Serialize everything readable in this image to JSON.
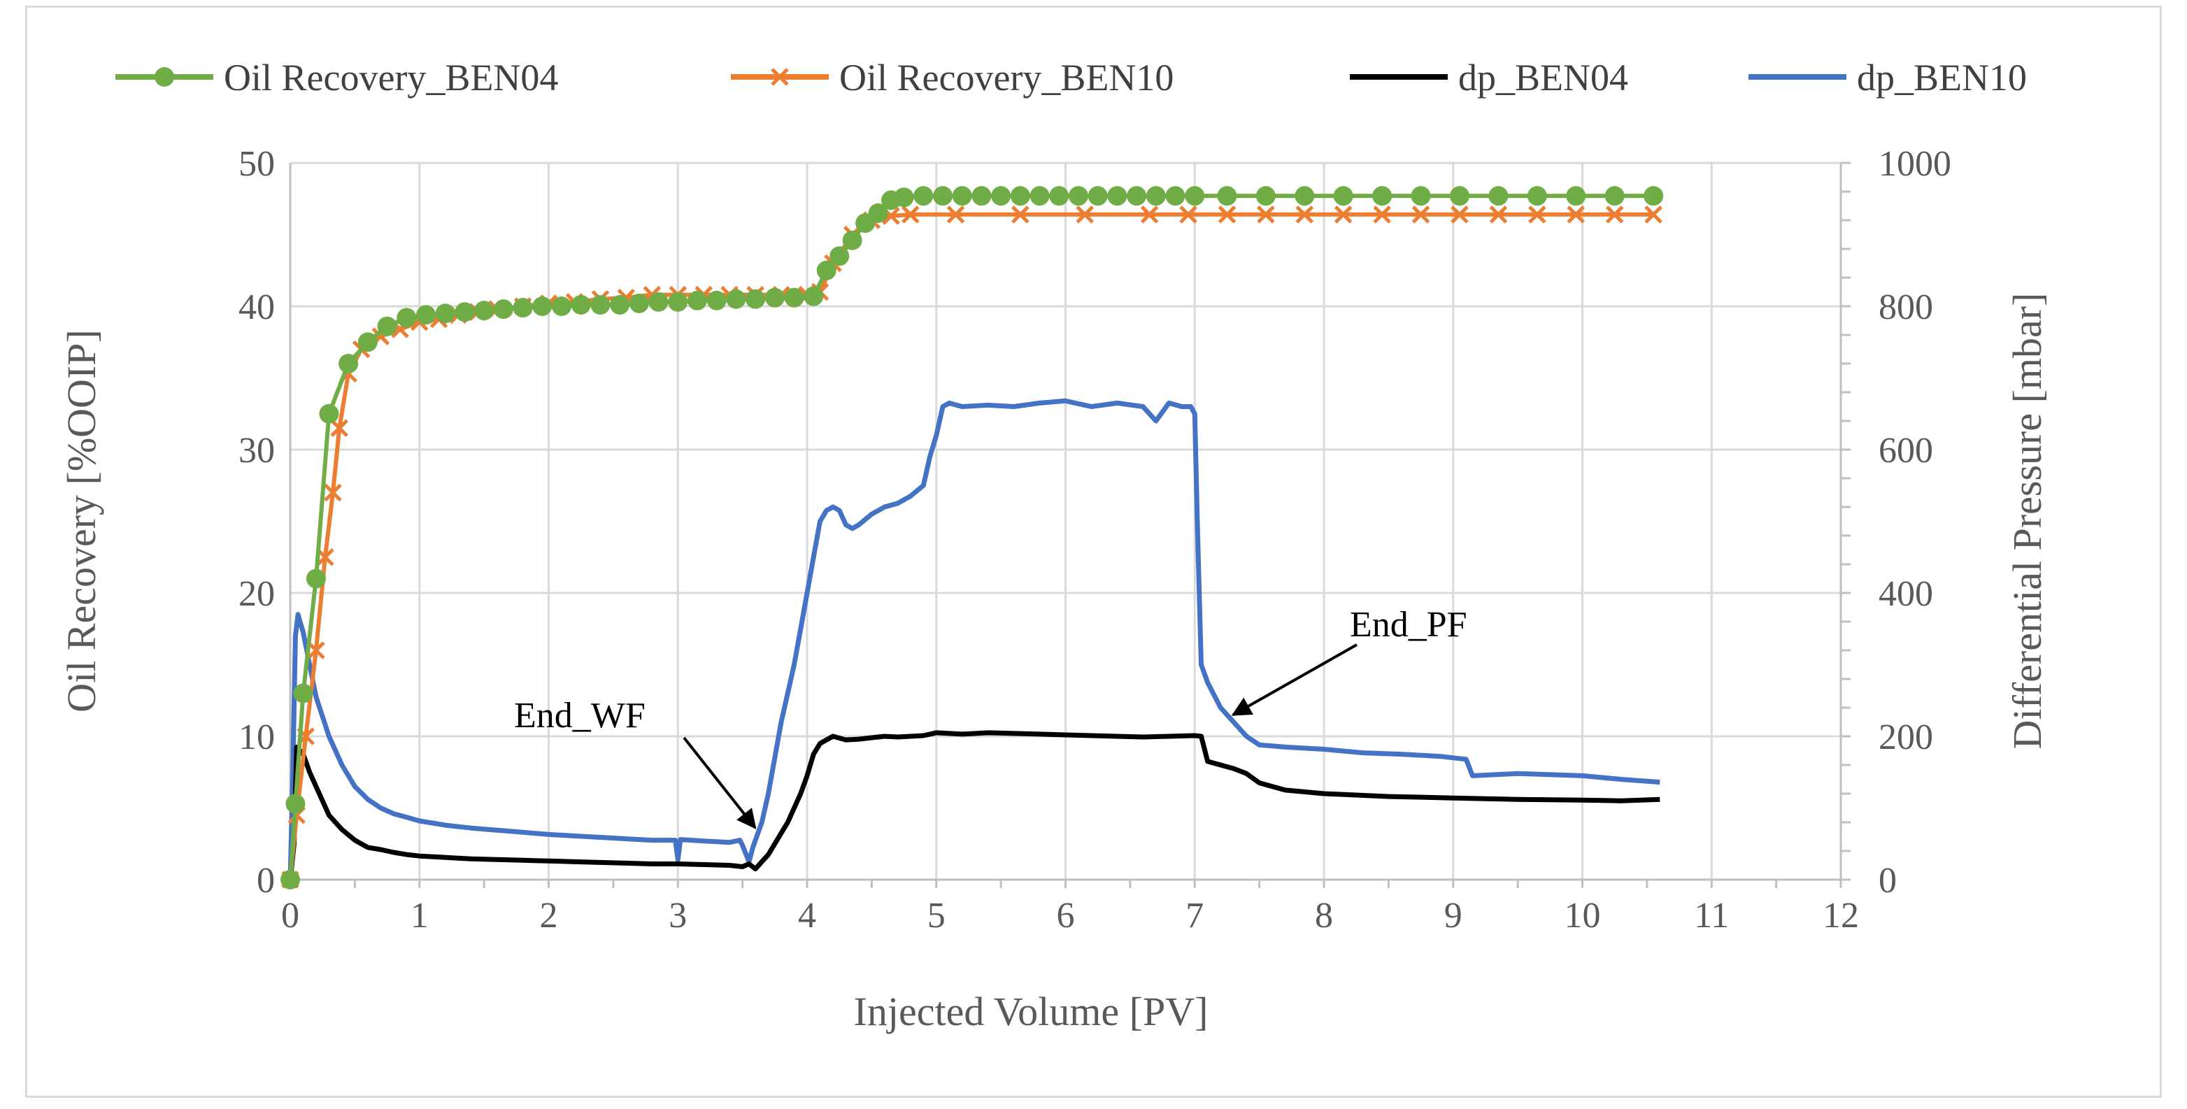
{
  "chart_data": {
    "type": "line",
    "title": "",
    "xlabel": "Injected Volume [PV]",
    "ylabel": "Oil Recovery [%OOIP]",
    "y2label": "Differential Pressure [mbar]",
    "xlim": [
      0,
      12
    ],
    "ylim": [
      0,
      50
    ],
    "y2lim": [
      0,
      1000
    ],
    "x_ticks": [
      0,
      1,
      2,
      3,
      4,
      5,
      6,
      7,
      8,
      9,
      10,
      11,
      12
    ],
    "y_ticks": [
      0,
      10,
      20,
      30,
      40,
      50
    ],
    "y2_ticks": [
      0,
      200,
      400,
      600,
      800,
      1000
    ],
    "grid": true,
    "legend_position": "top",
    "series": [
      {
        "name": "Oil Recovery_BEN04",
        "axis": "left",
        "color": "#70ad47",
        "marker": "circle",
        "x": [
          0,
          0.04,
          0.1,
          0.2,
          0.3,
          0.45,
          0.6,
          0.75,
          0.9,
          1.05,
          1.2,
          1.35,
          1.5,
          1.65,
          1.8,
          1.95,
          2.1,
          2.25,
          2.4,
          2.55,
          2.7,
          2.85,
          3.0,
          3.15,
          3.3,
          3.45,
          3.6,
          3.75,
          3.9,
          4.05,
          4.15,
          4.25,
          4.35,
          4.45,
          4.55,
          4.65,
          4.75,
          4.9,
          5.05,
          5.2,
          5.35,
          5.5,
          5.65,
          5.8,
          5.95,
          6.1,
          6.25,
          6.4,
          6.55,
          6.7,
          6.85,
          7.0,
          7.25,
          7.55,
          7.85,
          8.15,
          8.45,
          8.75,
          9.05,
          9.35,
          9.65,
          9.95,
          10.25,
          10.55
        ],
        "values": [
          0,
          5.3,
          13,
          21,
          32.5,
          36,
          37.5,
          38.6,
          39.2,
          39.4,
          39.5,
          39.6,
          39.7,
          39.8,
          39.9,
          40.0,
          40.0,
          40.1,
          40.1,
          40.1,
          40.2,
          40.3,
          40.3,
          40.4,
          40.4,
          40.5,
          40.5,
          40.6,
          40.6,
          40.7,
          42.5,
          43.5,
          44.6,
          45.8,
          46.5,
          47.4,
          47.6,
          47.7,
          47.7,
          47.7,
          47.7,
          47.7,
          47.7,
          47.7,
          47.7,
          47.7,
          47.7,
          47.7,
          47.7,
          47.7,
          47.7,
          47.7,
          47.7,
          47.7,
          47.7,
          47.7,
          47.7,
          47.7,
          47.7,
          47.7,
          47.7,
          47.7,
          47.7,
          47.7
        ]
      },
      {
        "name": "Oil Recovery_BEN10",
        "axis": "left",
        "color": "#ed7d31",
        "marker": "x",
        "x": [
          0,
          0.05,
          0.12,
          0.2,
          0.27,
          0.33,
          0.38,
          0.45,
          0.55,
          0.7,
          0.85,
          1.0,
          1.15,
          1.3,
          1.45,
          1.6,
          1.8,
          2.0,
          2.2,
          2.4,
          2.6,
          2.8,
          3.0,
          3.2,
          3.4,
          3.6,
          3.8,
          4.0,
          4.1,
          4.2,
          4.35,
          4.5,
          4.65,
          4.8,
          5.15,
          5.65,
          6.15,
          6.65,
          6.95,
          7.25,
          7.55,
          7.85,
          8.15,
          8.45,
          8.75,
          9.05,
          9.35,
          9.65,
          9.95,
          10.25,
          10.55
        ],
        "values": [
          0,
          4.5,
          10,
          16,
          22.5,
          27,
          31.5,
          35.3,
          37,
          37.9,
          38.4,
          38.9,
          39.1,
          39.4,
          39.6,
          39.8,
          40.0,
          40.2,
          40.3,
          40.5,
          40.6,
          40.8,
          40.8,
          40.8,
          40.8,
          40.8,
          40.8,
          40.8,
          41.0,
          43.0,
          45.0,
          46.0,
          46.3,
          46.4,
          46.4,
          46.4,
          46.4,
          46.4,
          46.4,
          46.4,
          46.4,
          46.4,
          46.4,
          46.4,
          46.4,
          46.4,
          46.4,
          46.4,
          46.4,
          46.4,
          46.4
        ]
      },
      {
        "name": "dp_BEN04",
        "axis": "right",
        "color": "#000000",
        "marker": "none",
        "x": [
          0,
          0.03,
          0.05,
          0.1,
          0.15,
          0.2,
          0.3,
          0.4,
          0.5,
          0.6,
          0.7,
          0.8,
          0.9,
          1.0,
          1.2,
          1.4,
          1.6,
          1.8,
          2.0,
          2.2,
          2.4,
          2.6,
          2.8,
          3.0,
          3.2,
          3.4,
          3.5,
          3.55,
          3.6,
          3.65,
          3.7,
          3.75,
          3.8,
          3.85,
          3.9,
          3.95,
          4.0,
          4.05,
          4.1,
          4.15,
          4.2,
          4.3,
          4.4,
          4.5,
          4.6,
          4.7,
          4.8,
          4.9,
          5.0,
          5.2,
          5.4,
          5.6,
          5.8,
          6.0,
          6.2,
          6.4,
          6.6,
          6.8,
          7.0,
          7.05,
          7.1,
          7.2,
          7.3,
          7.4,
          7.5,
          7.7,
          8.0,
          8.5,
          9.0,
          9.5,
          10.0,
          10.3,
          10.6
        ],
        "values": [
          0,
          50,
          185,
          175,
          150,
          130,
          90,
          70,
          55,
          45,
          42,
          38,
          35,
          33,
          31,
          29,
          28,
          27,
          26,
          25,
          24,
          23,
          22,
          22,
          21,
          20,
          18,
          22,
          15,
          25,
          35,
          50,
          65,
          80,
          100,
          120,
          145,
          175,
          190,
          195,
          200,
          195,
          196,
          198,
          200,
          199,
          200,
          201,
          205,
          203,
          205,
          204,
          203,
          202,
          201,
          200,
          199,
          200,
          201,
          200,
          165,
          160,
          155,
          148,
          135,
          125,
          120,
          116,
          114,
          112,
          111,
          110,
          112
        ]
      },
      {
        "name": "dp_BEN10",
        "axis": "right",
        "color": "#4472c4",
        "marker": "none",
        "x": [
          0,
          0.02,
          0.04,
          0.06,
          0.1,
          0.15,
          0.2,
          0.3,
          0.4,
          0.5,
          0.6,
          0.7,
          0.8,
          0.9,
          1.0,
          1.2,
          1.4,
          1.6,
          1.8,
          2.0,
          2.2,
          2.4,
          2.6,
          2.8,
          2.98,
          3.0,
          3.02,
          3.2,
          3.4,
          3.48,
          3.5,
          3.55,
          3.58,
          3.6,
          3.65,
          3.7,
          3.75,
          3.8,
          3.85,
          3.9,
          3.95,
          4.0,
          4.05,
          4.1,
          4.15,
          4.2,
          4.25,
          4.3,
          4.35,
          4.4,
          4.5,
          4.6,
          4.7,
          4.8,
          4.9,
          4.95,
          5.0,
          5.05,
          5.1,
          5.2,
          5.4,
          5.6,
          5.8,
          6.0,
          6.2,
          6.4,
          6.6,
          6.7,
          6.8,
          6.9,
          6.97,
          7.0,
          7.02,
          7.05,
          7.1,
          7.2,
          7.3,
          7.4,
          7.5,
          7.7,
          8.0,
          8.3,
          8.6,
          8.9,
          9.1,
          9.15,
          9.5,
          10.0,
          10.3,
          10.6
        ],
        "values": [
          0,
          150,
          340,
          370,
          345,
          300,
          255,
          200,
          160,
          130,
          112,
          100,
          92,
          87,
          82,
          76,
          72,
          69,
          66,
          63,
          61,
          59,
          57,
          55,
          55,
          28,
          56,
          54,
          52,
          55,
          48,
          25,
          45,
          55,
          80,
          120,
          170,
          220,
          260,
          300,
          350,
          400,
          450,
          500,
          515,
          520,
          515,
          495,
          490,
          495,
          510,
          520,
          525,
          535,
          550,
          590,
          620,
          660,
          665,
          660,
          662,
          660,
          665,
          668,
          660,
          665,
          660,
          640,
          665,
          660,
          660,
          650,
          500,
          300,
          275,
          240,
          220,
          200,
          188,
          185,
          182,
          177,
          175,
          172,
          168,
          145,
          148,
          145,
          140,
          136
        ]
      }
    ],
    "annotations": [
      {
        "text": "End_WF",
        "x": 3.5,
        "y2": 55
      },
      {
        "text": "End_PF",
        "x": 7.2,
        "y2": 232
      }
    ]
  }
}
